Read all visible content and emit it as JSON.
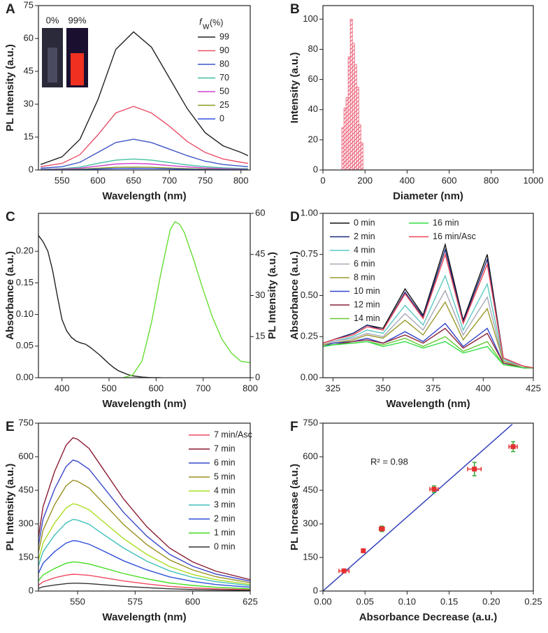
{
  "chart_data": [
    {
      "type": "line",
      "label": "A",
      "x_label": "Wavelength (nm)",
      "y_label": "PL Intensity (a.u.)",
      "xlim": [
        517,
        813
      ],
      "xticks": [
        550,
        600,
        650,
        700,
        750,
        800
      ],
      "ylim": [
        0,
        75
      ],
      "yticks": [
        0,
        15,
        30,
        45,
        60,
        75
      ],
      "legend": "upper right",
      "legend_title": "f",
      "legend_title_sub": "w",
      "legend_title_unit": "(%)",
      "inset_labels": [
        "0%",
        "99%"
      ],
      "x": [
        520,
        550,
        575,
        600,
        625,
        650,
        675,
        700,
        725,
        750,
        775,
        800,
        810
      ],
      "series": [
        {
          "name": "99",
          "color": "#222222",
          "values": [
            2.5,
            6,
            14,
            32,
            55,
            63,
            56,
            42,
            28,
            17,
            11,
            8,
            6.5
          ]
        },
        {
          "name": "90",
          "color": "#e8506a",
          "values": [
            1.5,
            3,
            7,
            16,
            26,
            29,
            26,
            20,
            13,
            8,
            5,
            3.5,
            3
          ]
        },
        {
          "name": "80",
          "color": "#3f55c8",
          "values": [
            0.8,
            1.5,
            3.5,
            8,
            12.5,
            14,
            12.5,
            9.5,
            6.5,
            4,
            2.5,
            1.8,
            1.5
          ]
        },
        {
          "name": "70",
          "color": "#40c0a0",
          "values": [
            0.3,
            0.6,
            1.3,
            3,
            4.5,
            5,
            4.5,
            3.4,
            2.3,
            1.5,
            1,
            0.7,
            0.6
          ]
        },
        {
          "name": "50",
          "color": "#d040d0",
          "values": [
            0.2,
            0.4,
            0.8,
            1.8,
            2.7,
            3,
            2.7,
            2,
            1.4,
            0.9,
            0.6,
            0.4,
            0.3
          ]
        },
        {
          "name": "25",
          "color": "#8a9a20",
          "values": [
            0.1,
            0.2,
            0.4,
            0.8,
            1.2,
            1.3,
            1.2,
            0.9,
            0.6,
            0.4,
            0.3,
            0.2,
            0.2
          ]
        },
        {
          "name": "0",
          "color": "#3050e0",
          "values": [
            0.05,
            0.1,
            0.2,
            0.4,
            0.6,
            0.7,
            0.6,
            0.5,
            0.3,
            0.2,
            0.15,
            0.1,
            0.1
          ]
        }
      ]
    },
    {
      "type": "histogram",
      "label": "B",
      "x_label": "Diameter (nm)",
      "y_label": "Intensity (a.u.)",
      "xlim": [
        0,
        1000
      ],
      "xticks": [
        0,
        200,
        400,
        600,
        800,
        1000
      ],
      "ylim": [
        0,
        109
      ],
      "yticks": [
        0,
        20,
        40,
        60,
        80,
        100
      ],
      "color": "#e8506a",
      "bins": [
        90,
        100,
        110,
        120,
        130,
        140,
        150,
        160,
        170,
        180,
        190
      ],
      "values": [
        28,
        41,
        48,
        75,
        100,
        84,
        70,
        55,
        30,
        18
      ]
    },
    {
      "type": "line",
      "label": "C",
      "x_label": "Wavelength (nm)",
      "y_label": "Absorbance (a.u.)",
      "y2_label": "PL Intensity (a.u.)",
      "xlim": [
        350,
        800
      ],
      "xticks": [
        400,
        500,
        600,
        700,
        800
      ],
      "ylim": [
        0,
        0.26
      ],
      "yticks": [
        {
          "value": 0,
          "label": "0.00"
        },
        0.05,
        {
          "value": 0.1,
          "label": "0.10"
        },
        0.15,
        {
          "value": 0.2,
          "label": "0.20"
        }
      ],
      "y2lim": [
        0,
        60
      ],
      "y2ticks": [
        0,
        15,
        30,
        45,
        60
      ],
      "series": [
        {
          "color": "#222222",
          "x": [
            350,
            360,
            370,
            380,
            390,
            400,
            410,
            420,
            430,
            440,
            450,
            460,
            470,
            480,
            490,
            500,
            510,
            520,
            530,
            540,
            550,
            570,
            590,
            610
          ],
          "values": [
            0.225,
            0.215,
            0.2,
            0.17,
            0.13,
            0.092,
            0.074,
            0.064,
            0.058,
            0.055,
            0.053,
            0.048,
            0.042,
            0.036,
            0.029,
            0.022,
            0.016,
            0.011,
            0.008,
            0.005,
            0.003,
            0.001,
            0,
            0
          ]
        },
        {
          "color": "#66dd33",
          "axis": "y2",
          "x": [
            530,
            550,
            570,
            590,
            610,
            630,
            640,
            650,
            660,
            680,
            700,
            720,
            740,
            760,
            780,
            800
          ],
          "values": [
            0,
            1,
            6,
            20,
            38,
            54,
            57,
            56,
            53,
            43,
            32,
            22,
            14,
            9,
            6,
            5.5
          ]
        }
      ]
    },
    {
      "type": "line",
      "label": "D",
      "x_label": "Wavelength (nm)",
      "y_label": "Absorbance (a.u.)",
      "xlim": [
        320,
        425
      ],
      "xticks": [
        325,
        350,
        375,
        400,
        425
      ],
      "ylim": [
        0,
        1
      ],
      "yticks": [
        {
          "value": 0,
          "label": "0.00"
        },
        0.25,
        {
          "value": 0.5,
          "label": "0.50"
        },
        0.75,
        {
          "value": 1,
          "label": "1.00"
        }
      ],
      "legend": "upper left",
      "x": [
        320,
        325,
        335,
        342,
        350,
        361,
        370,
        381,
        390,
        402,
        410,
        420,
        425
      ],
      "series": [
        {
          "name": "0 min",
          "color": "#111111",
          "values": [
            0.21,
            0.23,
            0.27,
            0.32,
            0.3,
            0.54,
            0.38,
            0.81,
            0.35,
            0.75,
            0.12,
            0.07,
            0.06
          ]
        },
        {
          "name": "2 min",
          "color": "#1c2a7a",
          "values": [
            0.21,
            0.23,
            0.27,
            0.32,
            0.29,
            0.52,
            0.37,
            0.78,
            0.34,
            0.72,
            0.12,
            0.07,
            0.06
          ]
        },
        {
          "name": "4 min",
          "color": "#5cc8c0",
          "values": [
            0.2,
            0.22,
            0.25,
            0.29,
            0.27,
            0.44,
            0.32,
            0.62,
            0.29,
            0.57,
            0.11,
            0.07,
            0.06
          ]
        },
        {
          "name": "6 min",
          "color": "#a8a8b8",
          "values": [
            0.2,
            0.22,
            0.24,
            0.27,
            0.25,
            0.39,
            0.29,
            0.53,
            0.26,
            0.49,
            0.1,
            0.07,
            0.06
          ]
        },
        {
          "name": "8 min",
          "color": "#9a9a30",
          "values": [
            0.2,
            0.21,
            0.23,
            0.26,
            0.24,
            0.35,
            0.26,
            0.46,
            0.23,
            0.42,
            0.1,
            0.06,
            0.06
          ]
        },
        {
          "name": "10 min",
          "color": "#3344cc",
          "values": [
            0.19,
            0.21,
            0.22,
            0.24,
            0.21,
            0.28,
            0.22,
            0.33,
            0.19,
            0.3,
            0.09,
            0.06,
            0.06
          ]
        },
        {
          "name": "12 min",
          "color": "#8a2238",
          "values": [
            0.19,
            0.2,
            0.22,
            0.23,
            0.21,
            0.26,
            0.21,
            0.3,
            0.18,
            0.27,
            0.09,
            0.06,
            0.06
          ]
        },
        {
          "name": "14 min",
          "color": "#66c833",
          "values": [
            0.19,
            0.2,
            0.21,
            0.22,
            0.2,
            0.24,
            0.19,
            0.25,
            0.16,
            0.22,
            0.08,
            0.06,
            0.06
          ]
        },
        {
          "name": "16 min",
          "color": "#33dd44",
          "values": [
            0.19,
            0.2,
            0.21,
            0.22,
            0.19,
            0.22,
            0.18,
            0.22,
            0.15,
            0.19,
            0.08,
            0.06,
            0.06
          ]
        },
        {
          "name": "16 min/Asc",
          "color": "#ee4455",
          "values": [
            0.21,
            0.23,
            0.26,
            0.31,
            0.29,
            0.51,
            0.36,
            0.75,
            0.33,
            0.69,
            0.12,
            0.07,
            0.06
          ]
        }
      ]
    },
    {
      "type": "line",
      "label": "E",
      "x_label": "Wavelength (nm)",
      "y_label": "PL Intensity (a.u.)",
      "xlim": [
        533,
        625
      ],
      "xticks": [
        550,
        575,
        600,
        625
      ],
      "ylim": [
        0,
        750
      ],
      "yticks": [
        0,
        150,
        300,
        450,
        600,
        750
      ],
      "legend": "upper right",
      "x": [
        533,
        535,
        540,
        545,
        548,
        550,
        555,
        560,
        570,
        580,
        590,
        600,
        610,
        625
      ],
      "series": [
        {
          "name": "7 min/Asc",
          "color": "#f04a60",
          "values": [
            26,
            41,
            59,
            71,
            75,
            74,
            70,
            62,
            45,
            32,
            21,
            14,
            10,
            6
          ]
        },
        {
          "name": "7 min",
          "color": "#8a1c30",
          "values": [
            240,
            377,
            534,
            651,
            685,
            678,
            637,
            562,
            411,
            288,
            192,
            130,
            89,
            51
          ]
        },
        {
          "name": "6 min",
          "color": "#3a48c8",
          "values": [
            205,
            322,
            456,
            556,
            585,
            579,
            544,
            480,
            351,
            246,
            164,
            111,
            76,
            44
          ]
        },
        {
          "name": "5 min",
          "color": "#9a9020",
          "values": [
            173,
            272,
            386,
            470,
            495,
            490,
            460,
            406,
            297,
            208,
            139,
            94,
            64,
            37
          ]
        },
        {
          "name": "4 min",
          "color": "#aadd22",
          "values": [
            137,
            215,
            304,
            371,
            390,
            386,
            363,
            320,
            234,
            164,
            109,
            74,
            51,
            29
          ]
        },
        {
          "name": "3 min",
          "color": "#40c0b8",
          "values": [
            112,
            176,
            250,
            304,
            320,
            317,
            298,
            262,
            192,
            134,
            90,
            61,
            42,
            24
          ]
        },
        {
          "name": "2 min",
          "color": "#3050d8",
          "values": [
            79,
            124,
            176,
            214,
            225,
            223,
            209,
            185,
            135,
            95,
            63,
            43,
            29,
            17
          ]
        },
        {
          "name": "1 min",
          "color": "#44dd22",
          "values": [
            46,
            72,
            101,
            124,
            130,
            129,
            121,
            107,
            78,
            55,
            36,
            25,
            17,
            10
          ]
        },
        {
          "name": "0 min",
          "color": "#333333",
          "values": [
            12,
            19,
            27,
            33,
            35,
            35,
            33,
            29,
            21,
            15,
            10,
            7,
            5,
            3
          ]
        }
      ]
    },
    {
      "type": "scatter",
      "label": "F",
      "x_label": "Absorbance Decrease (a.u.)",
      "y_label": "PL Increase (a.u.)",
      "xlim": [
        0,
        0.25
      ],
      "xticks": [
        {
          "value": 0,
          "label": "0.00"
        },
        0.05,
        {
          "value": 0.1,
          "label": "0.10"
        },
        0.15,
        {
          "value": 0.2,
          "label": "0.20"
        },
        0.25
      ],
      "ylim": [
        0,
        750
      ],
      "yticks": [
        0,
        150,
        300,
        450,
        600,
        750
      ],
      "annotation": "R² = 0.98",
      "color": "#e53030",
      "error_color": "#33aa33",
      "fit_color": "#3344bb",
      "x": [
        0.025,
        0.048,
        0.07,
        0.132,
        0.18,
        0.226
      ],
      "y": [
        90,
        180,
        278,
        455,
        545,
        645
      ],
      "xerr": [
        0.006,
        0.002,
        0.003,
        0.005,
        0.008,
        0.005
      ],
      "yerr": [
        8,
        6,
        12,
        15,
        30,
        22
      ],
      "fit": {
        "x": [
          0,
          0.225
        ],
        "y": [
          0,
          745
        ]
      }
    }
  ]
}
